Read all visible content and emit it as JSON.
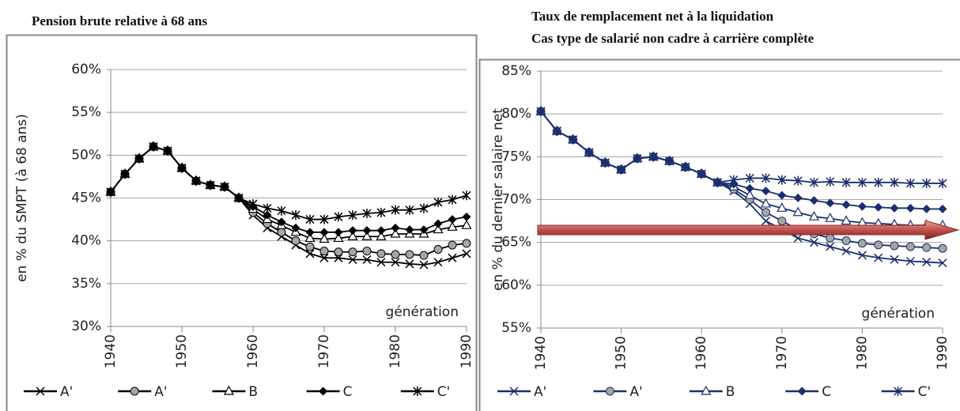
{
  "chart_data": [
    {
      "type": "line",
      "title": "Pension brute relative à 68 ans",
      "y_label": "en % du SMPT (à 68 ans)",
      "annotation": "génération",
      "x": [
        1940,
        1942,
        1944,
        1946,
        1948,
        1950,
        1952,
        1954,
        1956,
        1958,
        1960,
        1962,
        1964,
        1966,
        1968,
        1970,
        1972,
        1974,
        1976,
        1978,
        1980,
        1982,
        1984,
        1986,
        1988,
        1990
      ],
      "xlim": [
        1940,
        1990
      ],
      "xticks": [
        1940,
        1950,
        1960,
        1970,
        1980,
        1990
      ],
      "ylim": [
        30,
        60
      ],
      "yticks": [
        {
          "value": 30,
          "label": "30%"
        },
        {
          "value": 35,
          "label": "35%"
        },
        {
          "value": 40,
          "label": "40%"
        },
        {
          "value": 45,
          "label": "45%"
        },
        {
          "value": 50,
          "label": "50%"
        },
        {
          "value": 55,
          "label": "55%"
        },
        {
          "value": 60,
          "label": "60%"
        }
      ],
      "grid": true,
      "series": [
        {
          "name": "A'",
          "color": "#000000",
          "marker": "x",
          "values": [
            45.7,
            47.8,
            49.6,
            51.0,
            50.5,
            48.5,
            47.0,
            46.5,
            46.3,
            45.0,
            43.0,
            41.5,
            40.5,
            39.5,
            38.5,
            38.0,
            38.0,
            37.8,
            37.8,
            37.5,
            37.5,
            37.3,
            37.2,
            37.5,
            38.0,
            38.5
          ]
        },
        {
          "name": "A'",
          "color": "#000000",
          "marker": "circle",
          "values": [
            45.7,
            47.8,
            49.6,
            51.0,
            50.5,
            48.5,
            47.0,
            46.5,
            46.3,
            45.0,
            43.3,
            42.0,
            41.0,
            40.0,
            39.3,
            38.8,
            38.7,
            38.7,
            38.8,
            38.5,
            38.4,
            38.4,
            38.3,
            39.0,
            39.5,
            39.7
          ]
        },
        {
          "name": "B",
          "color": "#000000",
          "marker": "triangle",
          "values": [
            45.7,
            47.8,
            49.6,
            51.0,
            50.5,
            48.5,
            47.0,
            46.5,
            46.3,
            45.0,
            43.7,
            42.5,
            41.8,
            41.0,
            40.3,
            40.2,
            40.3,
            40.5,
            40.5,
            40.5,
            40.8,
            40.8,
            40.8,
            41.3,
            41.6,
            41.8
          ]
        },
        {
          "name": "C",
          "color": "#000000",
          "marker": "diamond",
          "values": [
            45.7,
            47.8,
            49.6,
            51.0,
            50.5,
            48.5,
            47.0,
            46.5,
            46.3,
            45.0,
            44.0,
            43.0,
            42.2,
            41.5,
            41.0,
            41.0,
            41.0,
            41.2,
            41.2,
            41.2,
            41.5,
            41.3,
            41.3,
            42.0,
            42.5,
            42.8
          ]
        },
        {
          "name": "C'",
          "color": "#000000",
          "marker": "star",
          "values": [
            45.7,
            47.8,
            49.6,
            51.0,
            50.5,
            48.5,
            47.0,
            46.5,
            46.3,
            45.0,
            44.3,
            43.8,
            43.5,
            43.0,
            42.5,
            42.5,
            42.8,
            43.0,
            43.2,
            43.3,
            43.6,
            43.6,
            43.8,
            44.5,
            44.8,
            45.3
          ]
        }
      ]
    },
    {
      "type": "line",
      "title": "Taux de remplacement net à la liquidation",
      "subtitle": "Cas type de salarié non cadre à carrière complète",
      "y_label": "en % du dernier salaire net",
      "annotation": "génération",
      "x": [
        1940,
        1942,
        1944,
        1946,
        1948,
        1950,
        1952,
        1954,
        1956,
        1958,
        1960,
        1962,
        1964,
        1966,
        1968,
        1970,
        1972,
        1974,
        1976,
        1978,
        1980,
        1982,
        1984,
        1986,
        1988,
        1990
      ],
      "xlim": [
        1940,
        1990
      ],
      "xticks": [
        1940,
        1950,
        1960,
        1970,
        1980,
        1990
      ],
      "ylim": [
        55,
        85
      ],
      "yticks": [
        {
          "value": 55,
          "label": "55%"
        },
        {
          "value": 60,
          "label": "60%"
        },
        {
          "value": 65,
          "label": "65%"
        },
        {
          "value": 70,
          "label": "70%"
        },
        {
          "value": 75,
          "label": "75%"
        },
        {
          "value": 80,
          "label": "80%"
        },
        {
          "value": 85,
          "label": "85%"
        }
      ],
      "grid": true,
      "series": [
        {
          "name": "A'",
          "color": "#1a2f6e",
          "marker": "x",
          "values": [
            80.3,
            78.0,
            77.0,
            75.5,
            74.3,
            73.5,
            74.8,
            75.0,
            74.5,
            73.8,
            73.0,
            72.0,
            71.0,
            69.5,
            67.5,
            66.5,
            65.5,
            65.0,
            64.5,
            64.0,
            63.5,
            63.2,
            63.0,
            62.8,
            62.7,
            62.6
          ]
        },
        {
          "name": "A'",
          "color": "#1a2f6e",
          "marker": "circle",
          "values": [
            80.3,
            78.0,
            77.0,
            75.5,
            74.3,
            73.5,
            74.8,
            75.0,
            74.5,
            73.8,
            73.0,
            72.0,
            71.2,
            70.0,
            68.5,
            67.5,
            66.5,
            66.0,
            65.5,
            65.2,
            64.9,
            64.7,
            64.6,
            64.5,
            64.4,
            64.3
          ]
        },
        {
          "name": "B",
          "color": "#1a2f6e",
          "marker": "triangle",
          "values": [
            80.3,
            78.0,
            77.0,
            75.5,
            74.3,
            73.5,
            74.8,
            75.0,
            74.5,
            73.8,
            73.0,
            72.0,
            71.5,
            70.5,
            69.5,
            69.0,
            68.5,
            68.0,
            67.8,
            67.5,
            67.3,
            67.2,
            67.1,
            67.0,
            67.0,
            67.0
          ]
        },
        {
          "name": "C",
          "color": "#1a2f6e",
          "marker": "diamond",
          "values": [
            80.3,
            78.0,
            77.0,
            75.5,
            74.3,
            73.5,
            74.8,
            75.0,
            74.5,
            73.8,
            73.0,
            72.0,
            71.8,
            71.3,
            71.0,
            70.5,
            70.2,
            69.9,
            69.6,
            69.4,
            69.2,
            69.1,
            69.0,
            69.0,
            68.9,
            68.9
          ]
        },
        {
          "name": "C'",
          "color": "#1a2f6e",
          "marker": "star",
          "values": [
            80.3,
            78.0,
            77.0,
            75.5,
            74.3,
            73.5,
            74.8,
            75.0,
            74.5,
            73.8,
            73.0,
            72.0,
            72.3,
            72.5,
            72.5,
            72.3,
            72.2,
            72.0,
            72.1,
            72.0,
            72.0,
            72.0,
            72.0,
            71.9,
            71.9,
            71.9
          ]
        }
      ]
    }
  ]
}
